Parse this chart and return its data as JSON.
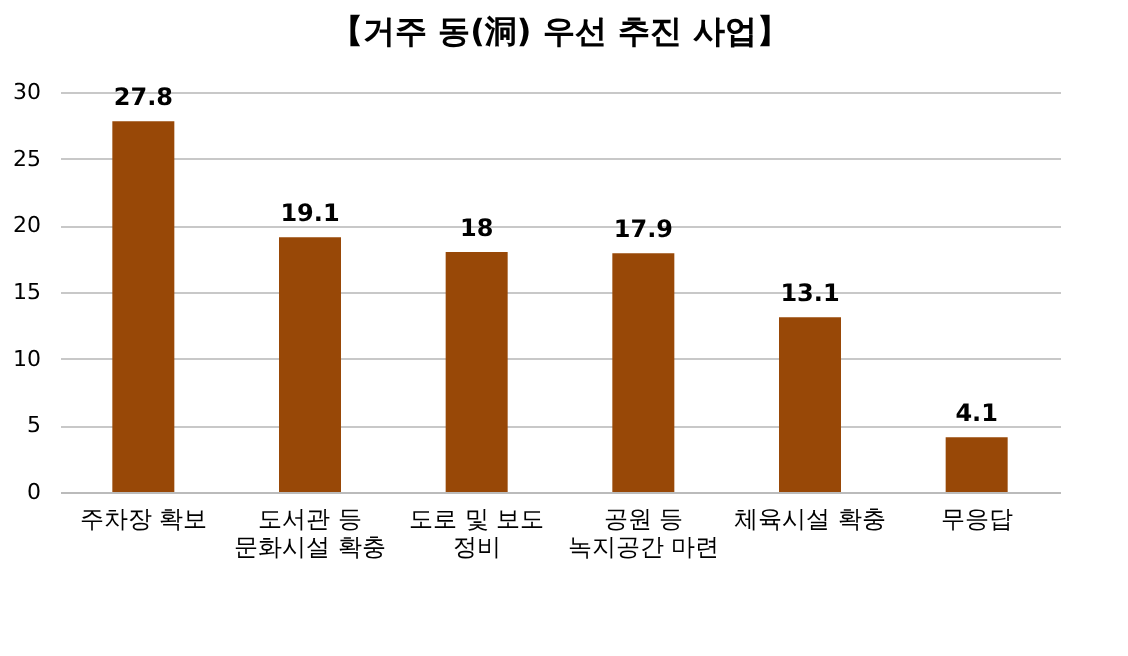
{
  "chart_data": {
    "type": "bar",
    "title": "【거주 동(洞) 우선 추진 사업】",
    "categories": [
      "주차장 확보",
      "도서관 등\n문화시설 확충",
      "도로 및 보도\n정비",
      "공원 등\n녹지공간 마련",
      "체육시설 확충",
      "무응답"
    ],
    "values": [
      27.8,
      19.1,
      18,
      17.9,
      13.1,
      4.1
    ],
    "color": "#984807",
    "ylim": [
      0,
      30
    ],
    "yticks": [
      0,
      5,
      10,
      15,
      20,
      25,
      30
    ],
    "grid": "y",
    "data_labels": true
  }
}
